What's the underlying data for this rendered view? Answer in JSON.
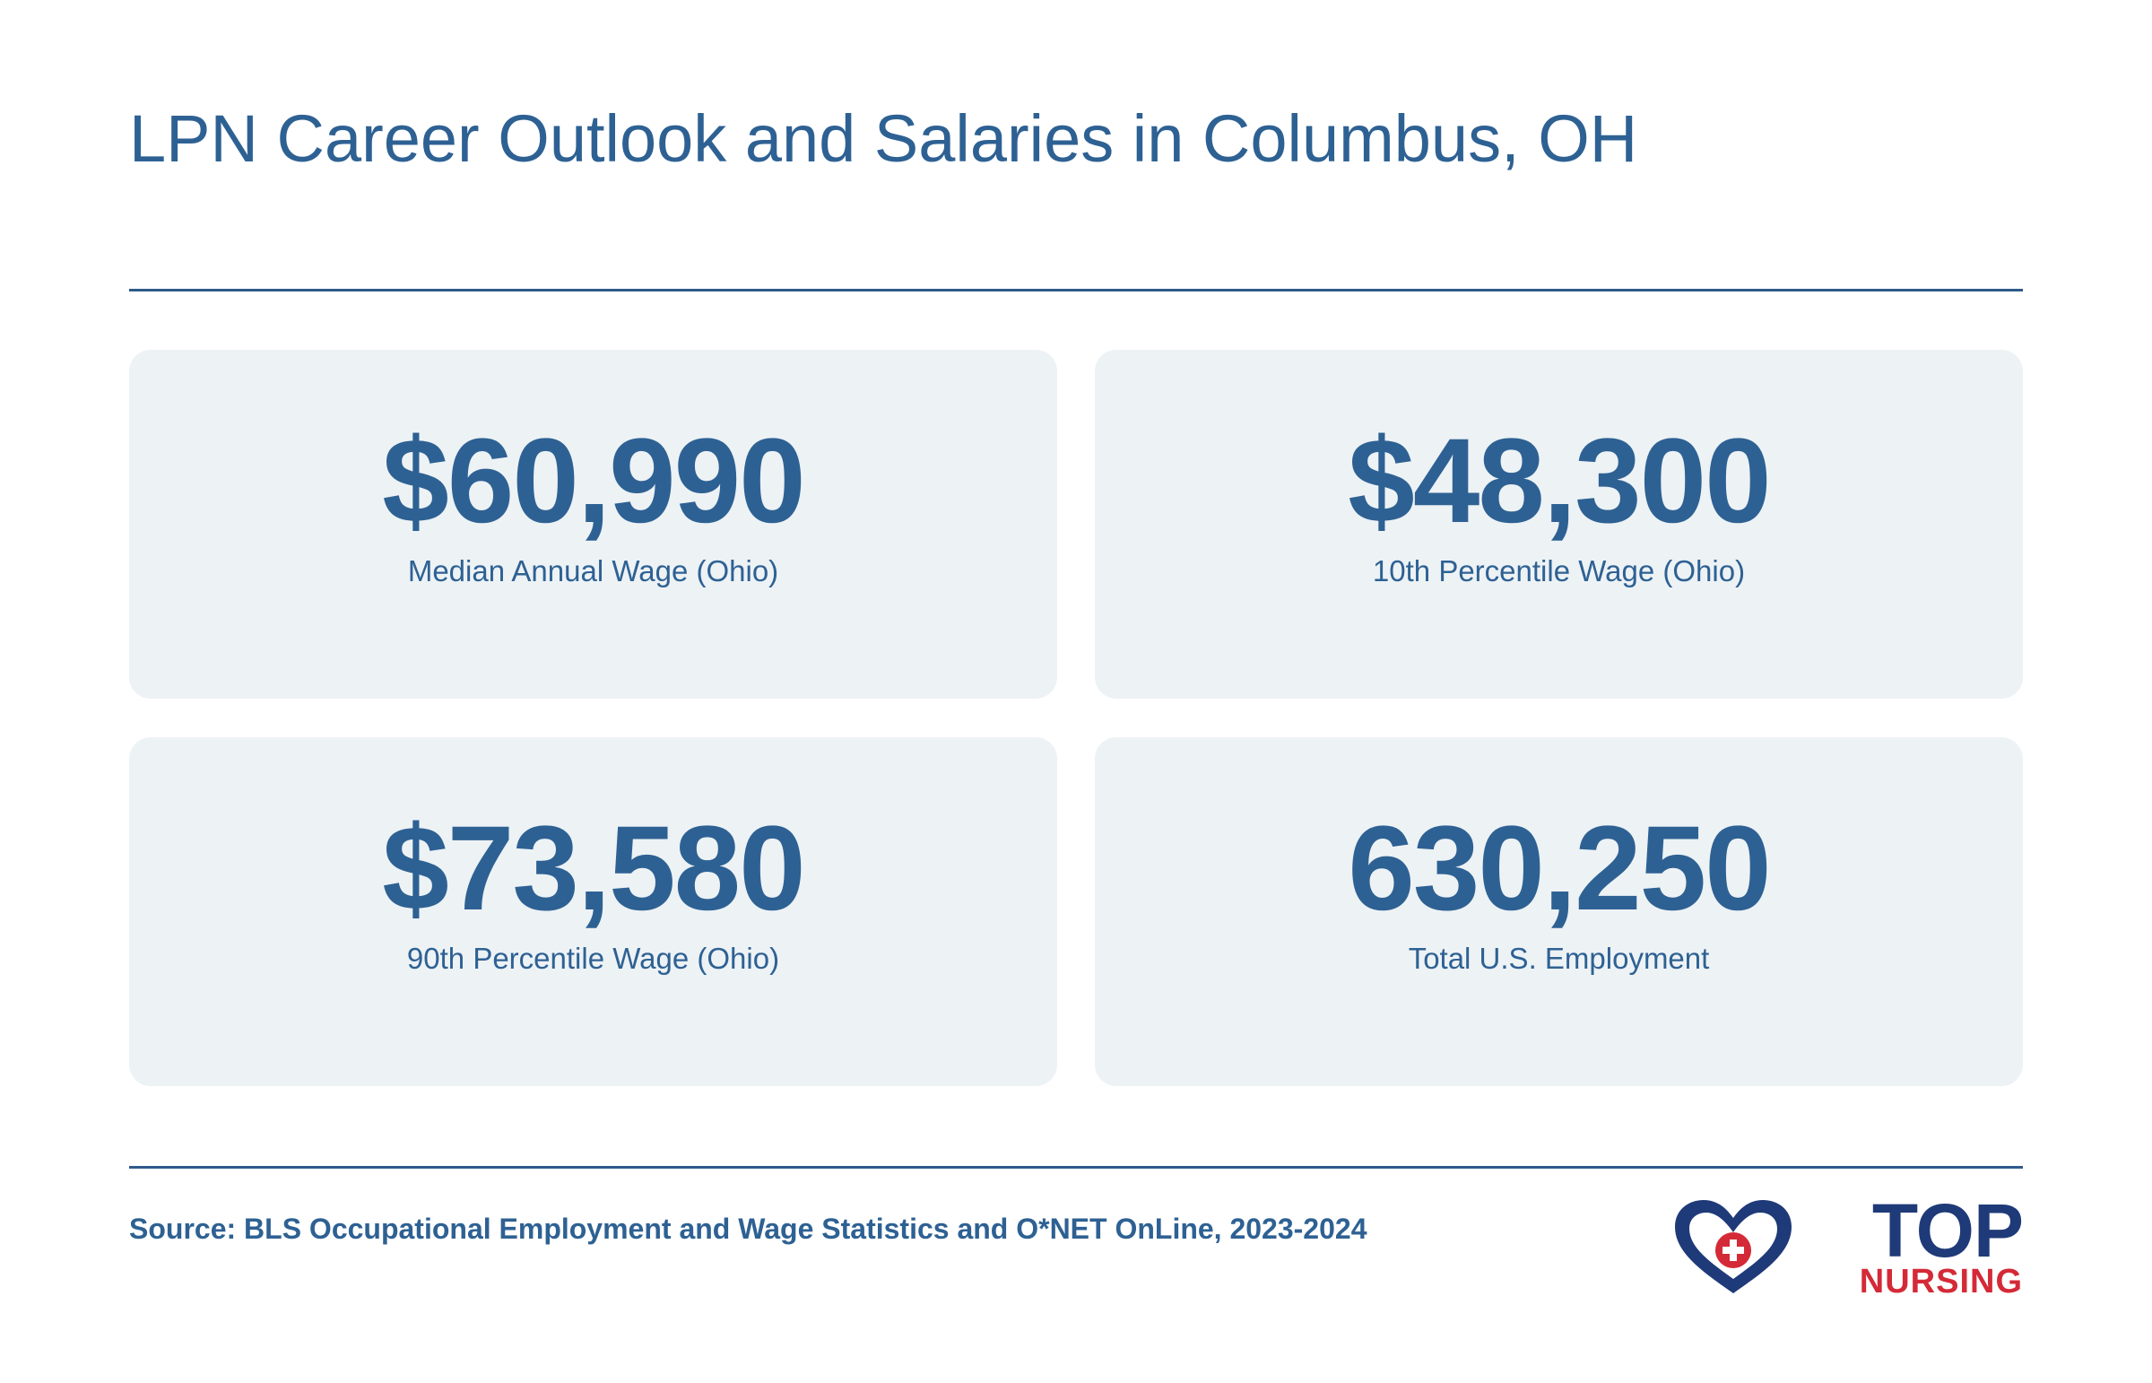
{
  "header": {
    "title": "LPN Career Outlook and Salaries in Columbus, OH"
  },
  "stats": [
    {
      "value": "$60,990",
      "label": "Median Annual Wage (Ohio)"
    },
    {
      "value": "$48,300",
      "label": "10th Percentile Wage (Ohio)"
    },
    {
      "value": "$73,580",
      "label": "90th Percentile Wage (Ohio)"
    },
    {
      "value": "630,250",
      "label": "Total U.S. Employment"
    }
  ],
  "footer": {
    "source": "Source: BLS Occupational Employment and Wage Statistics and O*NET OnLine, 2023-2024",
    "logo": {
      "top": "TOP",
      "bottom": "NURSING"
    }
  }
}
